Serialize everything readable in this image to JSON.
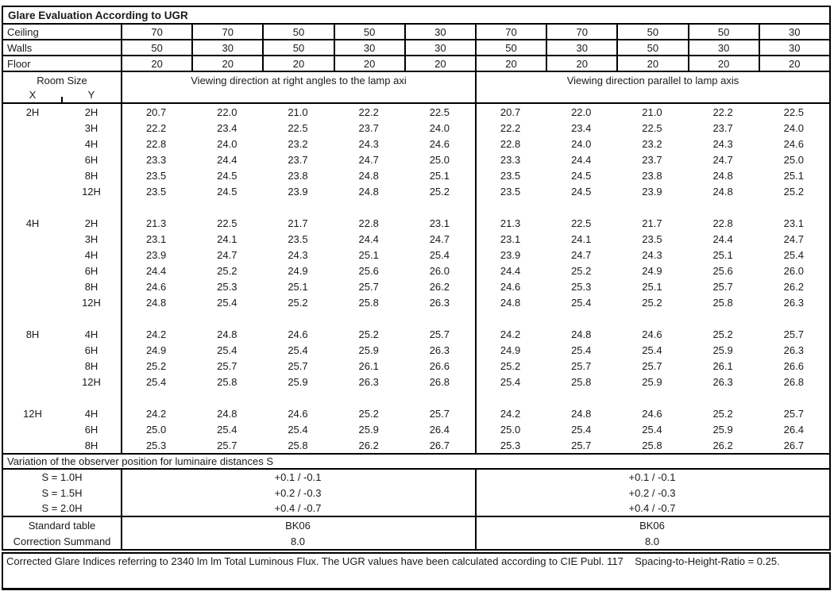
{
  "title": "Glare Evaluation According to UGR",
  "colors": {
    "border": "#000000",
    "text": "#1a1a1a",
    "background": "#ffffff"
  },
  "surfaces": [
    {
      "label": "Ceiling",
      "values": [
        "70",
        "70",
        "50",
        "50",
        "30",
        "70",
        "70",
        "50",
        "50",
        "30"
      ]
    },
    {
      "label": "Walls",
      "values": [
        "50",
        "30",
        "50",
        "30",
        "30",
        "50",
        "30",
        "50",
        "30",
        "30"
      ]
    },
    {
      "label": "Floor",
      "values": [
        "20",
        "20",
        "20",
        "20",
        "20",
        "20",
        "20",
        "20",
        "20",
        "20"
      ]
    }
  ],
  "header": {
    "room_size_label": "Room Size",
    "x_label": "X",
    "y_label": "Y",
    "left_group_title": "Viewing direction at right angles to the lamp axi",
    "right_group_title": "Viewing direction parallel to lamp axis"
  },
  "blocks": [
    {
      "x": "2H",
      "rows": [
        {
          "y": "2H",
          "left": [
            "20.7",
            "22.0",
            "21.0",
            "22.2",
            "22.5"
          ],
          "right": [
            "20.7",
            "22.0",
            "21.0",
            "22.2",
            "22.5"
          ]
        },
        {
          "y": "3H",
          "left": [
            "22.2",
            "23.4",
            "22.5",
            "23.7",
            "24.0"
          ],
          "right": [
            "22.2",
            "23.4",
            "22.5",
            "23.7",
            "24.0"
          ]
        },
        {
          "y": "4H",
          "left": [
            "22.8",
            "24.0",
            "23.2",
            "24.3",
            "24.6"
          ],
          "right": [
            "22.8",
            "24.0",
            "23.2",
            "24.3",
            "24.6"
          ]
        },
        {
          "y": "6H",
          "left": [
            "23.3",
            "24.4",
            "23.7",
            "24.7",
            "25.0"
          ],
          "right": [
            "23.3",
            "24.4",
            "23.7",
            "24.7",
            "25.0"
          ]
        },
        {
          "y": "8H",
          "left": [
            "23.5",
            "24.5",
            "23.8",
            "24.8",
            "25.1"
          ],
          "right": [
            "23.5",
            "24.5",
            "23.8",
            "24.8",
            "25.1"
          ]
        },
        {
          "y": "12H",
          "left": [
            "23.5",
            "24.5",
            "23.9",
            "24.8",
            "25.2"
          ],
          "right": [
            "23.5",
            "24.5",
            "23.9",
            "24.8",
            "25.2"
          ]
        }
      ]
    },
    {
      "x": "4H",
      "rows": [
        {
          "y": "2H",
          "left": [
            "21.3",
            "22.5",
            "21.7",
            "22.8",
            "23.1"
          ],
          "right": [
            "21.3",
            "22.5",
            "21.7",
            "22.8",
            "23.1"
          ]
        },
        {
          "y": "3H",
          "left": [
            "23.1",
            "24.1",
            "23.5",
            "24.4",
            "24.7"
          ],
          "right": [
            "23.1",
            "24.1",
            "23.5",
            "24.4",
            "24.7"
          ]
        },
        {
          "y": "4H",
          "left": [
            "23.9",
            "24.7",
            "24.3",
            "25.1",
            "25.4"
          ],
          "right": [
            "23.9",
            "24.7",
            "24.3",
            "25.1",
            "25.4"
          ]
        },
        {
          "y": "6H",
          "left": [
            "24.4",
            "25.2",
            "24.9",
            "25.6",
            "26.0"
          ],
          "right": [
            "24.4",
            "25.2",
            "24.9",
            "25.6",
            "26.0"
          ]
        },
        {
          "y": "8H",
          "left": [
            "24.6",
            "25.3",
            "25.1",
            "25.7",
            "26.2"
          ],
          "right": [
            "24.6",
            "25.3",
            "25.1",
            "25.7",
            "26.2"
          ]
        },
        {
          "y": "12H",
          "left": [
            "24.8",
            "25.4",
            "25.2",
            "25.8",
            "26.3"
          ],
          "right": [
            "24.8",
            "25.4",
            "25.2",
            "25.8",
            "26.3"
          ]
        }
      ]
    },
    {
      "x": "8H",
      "rows": [
        {
          "y": "4H",
          "left": [
            "24.2",
            "24.8",
            "24.6",
            "25.2",
            "25.7"
          ],
          "right": [
            "24.2",
            "24.8",
            "24.6",
            "25.2",
            "25.7"
          ]
        },
        {
          "y": "6H",
          "left": [
            "24.9",
            "25.4",
            "25.4",
            "25.9",
            "26.3"
          ],
          "right": [
            "24.9",
            "25.4",
            "25.4",
            "25.9",
            "26.3"
          ]
        },
        {
          "y": "8H",
          "left": [
            "25.2",
            "25.7",
            "25.7",
            "26.1",
            "26.6"
          ],
          "right": [
            "25.2",
            "25.7",
            "25.7",
            "26.1",
            "26.6"
          ]
        },
        {
          "y": "12H",
          "left": [
            "25.4",
            "25.8",
            "25.9",
            "26.3",
            "26.8"
          ],
          "right": [
            "25.4",
            "25.8",
            "25.9",
            "26.3",
            "26.8"
          ]
        }
      ]
    },
    {
      "x": "12H",
      "rows": [
        {
          "y": "4H",
          "left": [
            "24.2",
            "24.8",
            "24.6",
            "25.2",
            "25.7"
          ],
          "right": [
            "24.2",
            "24.8",
            "24.6",
            "25.2",
            "25.7"
          ]
        },
        {
          "y": "6H",
          "left": [
            "25.0",
            "25.4",
            "25.4",
            "25.9",
            "26.4"
          ],
          "right": [
            "25.0",
            "25.4",
            "25.4",
            "25.9",
            "26.4"
          ]
        },
        {
          "y": "8H",
          "left": [
            "25.3",
            "25.7",
            "25.8",
            "26.2",
            "26.7"
          ],
          "right": [
            "25.3",
            "25.7",
            "25.8",
            "26.2",
            "26.7"
          ]
        }
      ]
    }
  ],
  "variation_title": "Variation of the observer position for luminaire distances S",
  "variation_rows": [
    {
      "label": "S = 1.0H",
      "left": "+0.1 / -0.1",
      "right": "+0.1 / -0.1"
    },
    {
      "label": "S = 1.5H",
      "left": "+0.2 / -0.3",
      "right": "+0.2 / -0.3"
    },
    {
      "label": "S = 2.0H",
      "left": "+0.4 / -0.7",
      "right": "+0.4 / -0.7"
    }
  ],
  "summary_rows": [
    {
      "label": "Standard table",
      "left": "BK06",
      "right": "BK06"
    },
    {
      "label": "Correction Summand",
      "left": "8.0",
      "right": "8.0"
    }
  ],
  "footer": "Corrected Glare Indices referring to 2340 lm lm Total Luminous Flux. The UGR values have been calculated according to CIE Publ. 117    Spacing-to-Height-Ratio = 0.25."
}
